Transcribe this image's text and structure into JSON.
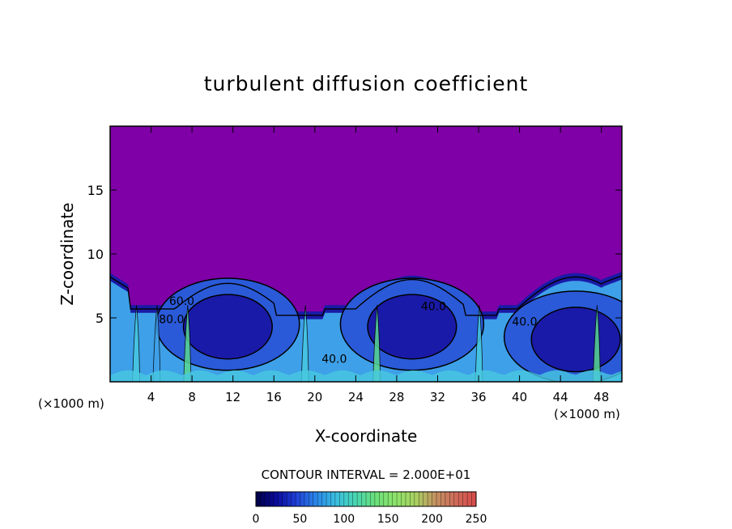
{
  "chart_data": {
    "type": "heatmap",
    "title": "turbulent diffusion coefficient",
    "xlabel": "X-coordinate",
    "ylabel": "Z-coordinate",
    "x_unit_left": "(×1000 m)",
    "x_unit_right": "(×1000 m)",
    "xlim": [
      0,
      50
    ],
    "ylim": [
      0,
      20
    ],
    "xticks": [
      "4",
      "8",
      "12",
      "16",
      "20",
      "24",
      "28",
      "32",
      "36",
      "40",
      "44",
      "48"
    ],
    "yticks": [
      "5",
      "10",
      "15"
    ],
    "background_value_color": "#7e00a6",
    "contour_interval_text": "CONTOUR INTERVAL = 2.000E+01",
    "contour_labels": [
      {
        "text": "80.0",
        "x": 6.0,
        "z": 4.6
      },
      {
        "text": "60.0",
        "x": 7.0,
        "z": 6.0
      },
      {
        "text": "40.0",
        "x": 21.9,
        "z": 1.5
      },
      {
        "text": "40.0",
        "x": 31.6,
        "z": 5.6
      },
      {
        "text": "40.0",
        "x": 40.5,
        "z": 4.4
      }
    ],
    "colorbar": {
      "range": [
        0,
        250
      ],
      "tick_labels": [
        "0",
        "50",
        "100",
        "150",
        "200",
        "250"
      ],
      "colors": [
        "#000046",
        "#0a0a9a",
        "#1f3fd6",
        "#2a86e8",
        "#39bfe0",
        "#49d6b0",
        "#6be07a",
        "#8ee36a",
        "#a8d060",
        "#c49060",
        "#d06a5a",
        "#d84a4a"
      ]
    },
    "convective_cells": [
      {
        "center_x": 11.5,
        "center_z": 4.5,
        "top_z": 8.0
      },
      {
        "center_x": 29.5,
        "center_z": 4.5,
        "top_z": 8.3
      },
      {
        "center_x": 45.5,
        "center_z": 3.5,
        "top_z": 8.5
      }
    ]
  },
  "colors": {
    "frame": "#000000",
    "deep_blue": "#1a1aa8",
    "mid_blue": "#2a5ad8",
    "light_blue": "#3ea0e8",
    "cyan": "#47c8e0",
    "green": "#58d890"
  }
}
